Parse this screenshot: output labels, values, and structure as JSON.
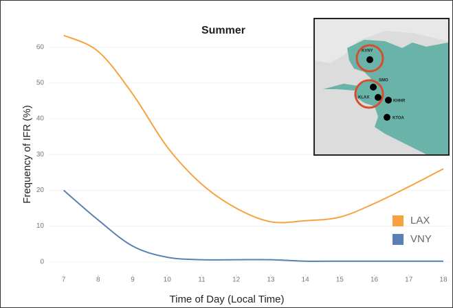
{
  "chart_data": {
    "type": "line",
    "title": "Summer",
    "x_label": "Time of Day (Local Time)",
    "y_label": "Frequency of IFR (%)",
    "x": [
      7,
      8,
      9,
      10,
      11,
      12,
      13,
      14,
      15,
      16,
      17,
      18
    ],
    "series": [
      {
        "name": "LAX",
        "color": "#f7a23f",
        "values": [
          63.3,
          58.8,
          46.9,
          32.1,
          21.7,
          15,
          11.2,
          11.5,
          12.5,
          16.3,
          21,
          26
        ]
      },
      {
        "name": "VNY",
        "color": "#5a7fb2",
        "values": [
          20,
          11.7,
          4.4,
          1.3,
          0.6,
          0.6,
          0.6,
          0.2,
          0.2,
          0.2,
          0.2,
          0.2
        ]
      }
    ],
    "xlim": [
      6.55,
      18.2
    ],
    "xticks": [
      7,
      8,
      9,
      10,
      11,
      12,
      13,
      14,
      15,
      16,
      17,
      18
    ],
    "ylim": [
      -3.5,
      65.5
    ],
    "yticks": [
      0,
      10,
      20,
      30,
      40,
      50,
      60
    ],
    "grid": true,
    "legend": "lower right",
    "annotations": [
      "KVNY",
      "SMO",
      "KLAX",
      "KHHR",
      "KTOA"
    ]
  }
}
